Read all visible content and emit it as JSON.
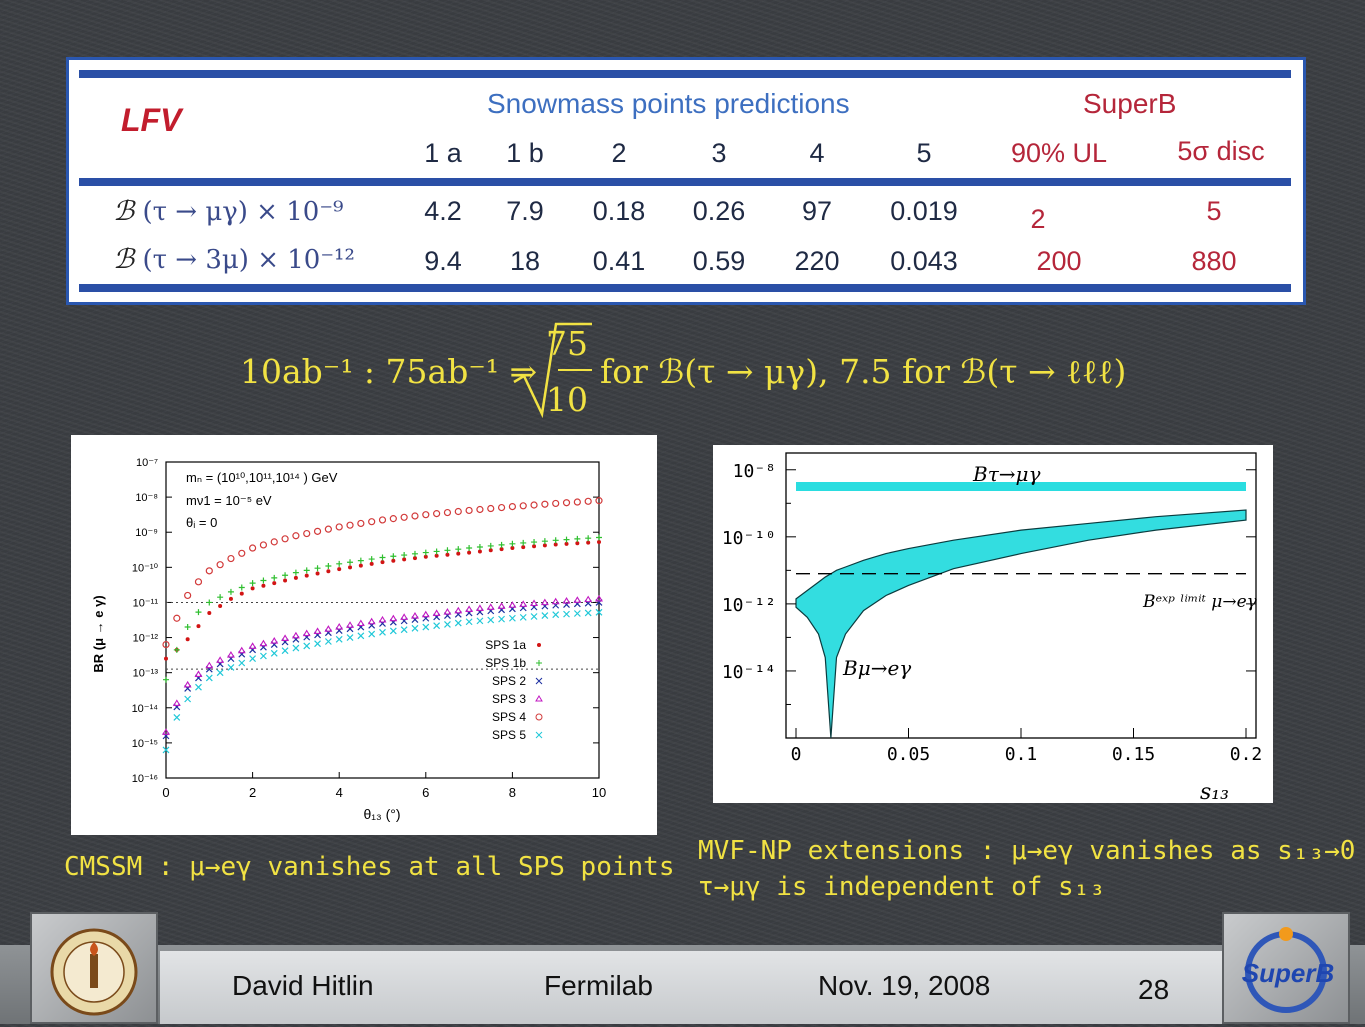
{
  "table": {
    "title": "LFV",
    "snowmass_header": "Snowmass points predictions",
    "superb_header": "SuperB",
    "columns": [
      "1 a",
      "1 b",
      "2",
      "3",
      "4",
      "5"
    ],
    "superb_columns": [
      "90% UL",
      "5σ disc"
    ],
    "rows": [
      {
        "label_prefix": "ℬ",
        "label": "(τ → μγ) × 10⁻⁹",
        "values": [
          "4.2",
          "7.9",
          "0.18",
          "0.26",
          "97",
          "0.019"
        ],
        "ul": "2",
        "disc": "5"
      },
      {
        "label_prefix": "ℬ",
        "label": "(τ → 3μ) × 10⁻¹²",
        "values": [
          "9.4",
          "18",
          "0.41",
          "0.59",
          "220",
          "0.043"
        ],
        "ul": "200",
        "disc": "880"
      }
    ]
  },
  "formula": {
    "lhs": "10ab⁻¹ : 75ab⁻¹ ⇒",
    "sqrt_num": "75",
    "sqrt_den": "10",
    "mid": "for ℬ(τ → μγ), 7.5 for ℬ(τ → ℓℓℓ)"
  },
  "left_plot": {
    "ylabel": "BR (μ → e γ)",
    "xlabel": "θ₁₃ (°)",
    "yticks": [
      "10⁻⁷",
      "10⁻⁸",
      "10⁻⁹",
      "10⁻¹⁰",
      "10⁻¹¹",
      "10⁻¹²",
      "10⁻¹³",
      "10⁻¹⁴",
      "10⁻¹⁵",
      "10⁻¹⁶"
    ],
    "xticks": [
      "0",
      "2",
      "4",
      "6",
      "8",
      "10"
    ],
    "annot1": "mₙ = (10¹⁰,10¹¹,10¹⁴ ) GeV",
    "annot2": "mν1 = 10⁻⁵ eV",
    "annot3": "θᵢ = 0",
    "legend": [
      "SPS 1a",
      "SPS 1b",
      "SPS 2",
      "SPS 3",
      "SPS 4",
      "SPS 5"
    ]
  },
  "right_plot": {
    "yticks": [
      "10⁻⁸",
      "10⁻¹⁰",
      "10⁻¹²",
      "10⁻¹⁴"
    ],
    "xticks": [
      "0",
      "0.05",
      "0.1",
      "0.15",
      "0.2"
    ],
    "xlabel": "s₁₃",
    "label_tau": "Bτ→μγ",
    "label_mu": "Bμ→eγ",
    "label_limit": "Bᵉˣᵖ ˡⁱᵐⁱᵗ μ→eγ"
  },
  "captions": {
    "left": "CMSSM : μ→eγ  vanishes at all SPS points",
    "right1": "MVF-NP extensions : μ→eγ  vanishes as s₁₃→0",
    "right2": "τ→μγ is independent of s₁₃"
  },
  "footer": {
    "author": "David Hitlin",
    "venue": "Fermilab",
    "date": "Nov. 19, 2008",
    "page": "28",
    "logo_right_text": "SuperB"
  },
  "chart_data": [
    {
      "type": "scatter",
      "xlabel": "θ₁₃ (°)",
      "ylabel": "BR (μ → e γ)",
      "xlim": [
        0,
        10
      ],
      "ylim_log10": [
        -16,
        -7
      ],
      "yscale": "log",
      "x": [
        0,
        0.2,
        0.4,
        0.6,
        0.8,
        1,
        1.5,
        2,
        3,
        4,
        5,
        6,
        7,
        8,
        9,
        10
      ],
      "series": [
        {
          "name": "SPS 1a",
          "color": "#d21414",
          "log10_y": [
            -12.6,
            -12.4,
            -12.2,
            -11.9,
            -11.6,
            -11.3,
            -10.9,
            -10.6,
            -10.3,
            -10.05,
            -9.85,
            -9.7,
            -9.58,
            -9.45,
            -9.35,
            -9.28
          ]
        },
        {
          "name": "SPS 1b",
          "color": "#2fbf2f",
          "log10_y": [
            -13.2,
            -12.5,
            -11.9,
            -11.5,
            -11.2,
            -11,
            -10.7,
            -10.45,
            -10.15,
            -9.9,
            -9.72,
            -9.58,
            -9.45,
            -9.33,
            -9.23,
            -9.15
          ]
        },
        {
          "name": "SPS 2",
          "color": "#1c2fa0",
          "log10_y": [
            -14.8,
            -14.1,
            -13.6,
            -13.3,
            -13.1,
            -12.9,
            -12.6,
            -12.35,
            -12.05,
            -11.8,
            -11.6,
            -11.45,
            -11.3,
            -11.18,
            -11.08,
            -11
          ]
        },
        {
          "name": "SPS 3",
          "color": "#c218c2",
          "log10_y": [
            -14.7,
            -14,
            -13.5,
            -13.2,
            -13,
            -12.8,
            -12.5,
            -12.25,
            -11.95,
            -11.7,
            -11.5,
            -11.35,
            -11.2,
            -11.08,
            -10.98,
            -10.9
          ]
        },
        {
          "name": "SPS 4",
          "color": "#d23a3a",
          "log10_y": [
            -12.2,
            -11.6,
            -11,
            -10.6,
            -10.35,
            -10.1,
            -9.75,
            -9.45,
            -9.1,
            -8.85,
            -8.65,
            -8.5,
            -8.38,
            -8.27,
            -8.18,
            -8.1
          ]
        },
        {
          "name": "SPS 5",
          "color": "#20c8d8",
          "log10_y": [
            -15.2,
            -14.4,
            -13.9,
            -13.6,
            -13.35,
            -13.15,
            -12.85,
            -12.6,
            -12.3,
            -12.05,
            -11.85,
            -11.7,
            -11.55,
            -11.45,
            -11.35,
            -11.28
          ]
        }
      ],
      "dotted_lines_log10": [
        -11,
        -12.9
      ]
    },
    {
      "type": "area",
      "xlabel": "s₁₃",
      "xlim": [
        0,
        0.2
      ],
      "ylim_log10": [
        -16,
        -7.5
      ],
      "yscale": "log",
      "tau_line_log10": -8.5,
      "limit_line_log10": -11.1,
      "band_x": [
        0,
        0.005,
        0.01,
        0.013,
        0.0155,
        0.018,
        0.022,
        0.03,
        0.04,
        0.05,
        0.07,
        0.1,
        0.13,
        0.16,
        0.2
      ],
      "band_upper_log10": [
        -11.85,
        -11.6,
        -11.35,
        -11.2,
        -11.1,
        -11.0,
        -10.9,
        -10.7,
        -10.5,
        -10.35,
        -10.1,
        -9.8,
        -9.6,
        -9.4,
        -9.2
      ],
      "band_lower_log10": [
        -12.1,
        -12.4,
        -12.9,
        -13.6,
        -16,
        -13.6,
        -12.9,
        -12.2,
        -11.75,
        -11.45,
        -10.95,
        -10.5,
        -10.1,
        -9.8,
        -9.5
      ]
    }
  ]
}
